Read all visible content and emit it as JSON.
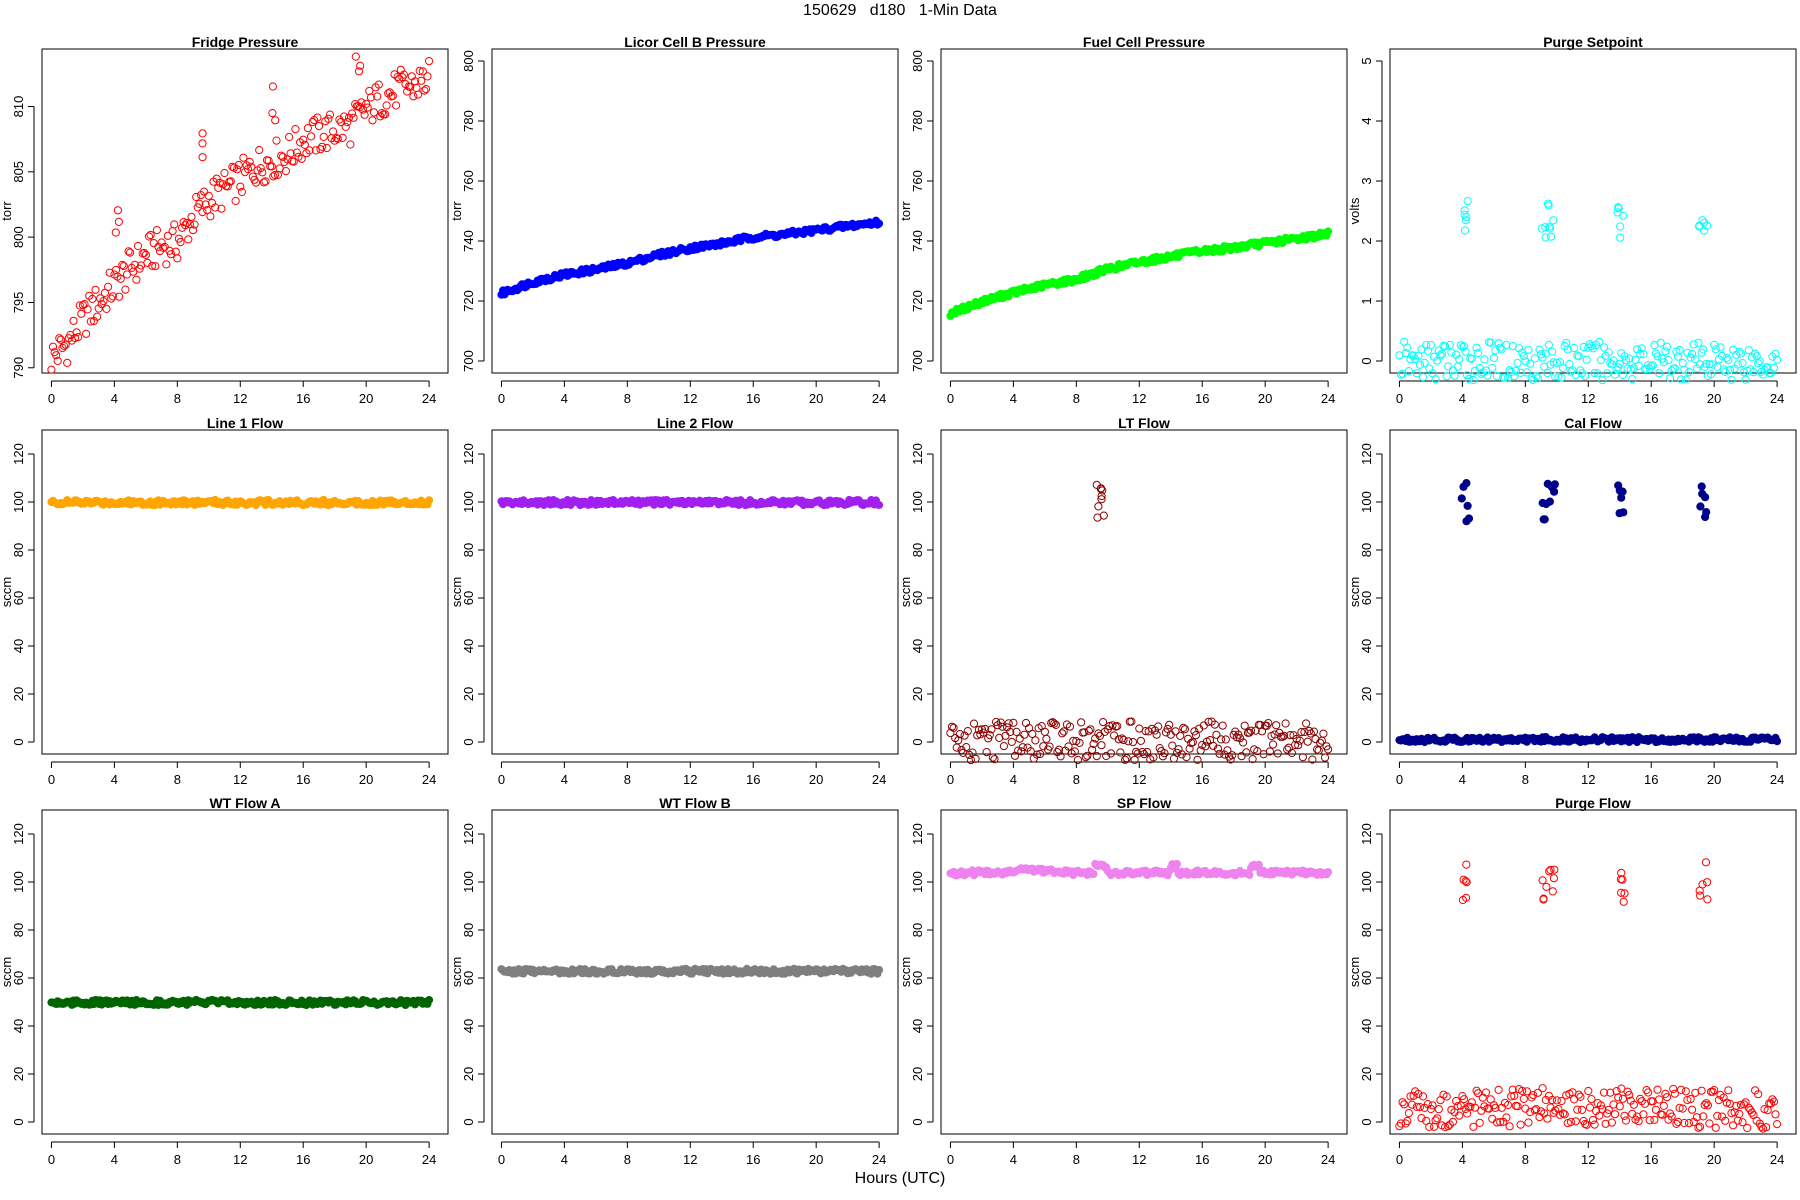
{
  "figure": {
    "title": "150629   d180   1-Min Data",
    "xlabel": "Hours (UTC)"
  },
  "chart_data": [
    {
      "type": "scatter",
      "title": "Fridge Pressure",
      "ylabel": "torr",
      "color": "#ff0000",
      "marker": "open-circle",
      "xlim": [
        -0.6,
        25.2
      ],
      "ylim": [
        789.6,
        814.4
      ],
      "xticks": [
        0,
        4,
        8,
        12,
        16,
        20,
        24
      ],
      "yticks": [
        790,
        795,
        800,
        805,
        810
      ],
      "series": [
        {
          "x": [
            0,
            1,
            2,
            3,
            4,
            5,
            6,
            7,
            8,
            9,
            10,
            11,
            12,
            13,
            14,
            15,
            16,
            17,
            18,
            19,
            20,
            21,
            22,
            23,
            24
          ],
          "y": [
            790.8,
            791.8,
            793.7,
            795.0,
            796.3,
            797.6,
            798.6,
            799.3,
            799.6,
            801.5,
            802.9,
            803.6,
            804.4,
            805.4,
            805.9,
            806.3,
            807.4,
            807.8,
            808.2,
            808.5,
            809.8,
            810.6,
            811.3,
            811.6,
            812.1
          ]
        },
        {
          "x": [
            4.2,
            9.6,
            14.1,
            19.5
          ],
          "y": [
            801.3,
            806.9,
            810.3,
            813.4
          ]
        }
      ]
    },
    {
      "type": "scatter",
      "title": "Licor Cell B Pressure",
      "ylabel": "torr",
      "color": "#0000ff",
      "marker": "filled-circle",
      "xlim": [
        -0.6,
        25.2
      ],
      "ylim": [
        696,
        804
      ],
      "xticks": [
        0,
        4,
        8,
        12,
        16,
        20,
        24
      ],
      "yticks": [
        700,
        720,
        740,
        760,
        780,
        800
      ],
      "series": [
        {
          "x": [
            0,
            2,
            4,
            6,
            8,
            10,
            12,
            14,
            16,
            18,
            20,
            22,
            24
          ],
          "y": [
            722.5,
            726.3,
            728.8,
            730.5,
            732.6,
            735.4,
            737.6,
            739.2,
            741.3,
            742.2,
            743.6,
            745.0,
            746.2
          ]
        }
      ]
    },
    {
      "type": "scatter",
      "title": "Fuel Cell Pressure",
      "ylabel": "torr",
      "color": "#00ff00",
      "marker": "filled-circle",
      "xlim": [
        -0.6,
        25.2
      ],
      "ylim": [
        696,
        804
      ],
      "xticks": [
        0,
        4,
        8,
        12,
        16,
        20,
        24
      ],
      "yticks": [
        700,
        720,
        740,
        760,
        780,
        800
      ],
      "series": [
        {
          "x": [
            0,
            2,
            4,
            6,
            8,
            10,
            12,
            14,
            16,
            18,
            20,
            22,
            24
          ],
          "y": [
            715.8,
            719.8,
            722.8,
            725.3,
            727.2,
            730.7,
            733.0,
            734.8,
            736.6,
            737.8,
            739.3,
            740.8,
            742.4
          ]
        }
      ]
    },
    {
      "type": "scatter",
      "title": "Purge Setpoint",
      "ylabel": "volts",
      "color": "#00ffff",
      "marker": "open-circle",
      "xlim": [
        -0.6,
        25.2
      ],
      "ylim": [
        -0.2,
        5.2
      ],
      "xticks": [
        0,
        4,
        8,
        12,
        16,
        20,
        24
      ],
      "yticks": [
        0,
        1,
        2,
        3,
        4,
        5
      ],
      "series": [
        {
          "x": [
            0,
            2,
            4,
            6,
            8,
            10,
            12,
            14,
            16,
            18,
            20,
            22,
            24
          ],
          "y": [
            0,
            0,
            0,
            0,
            0,
            0,
            0,
            0,
            0,
            0,
            0,
            0,
            0
          ]
        },
        {
          "x": [
            4.1,
            4.3,
            9.2,
            9.4,
            9.6,
            14.0,
            14.2,
            19.2,
            19.4
          ],
          "y": [
            2.45,
            2.38,
            2.38,
            2.45,
            2.37,
            2.45,
            2.36,
            2.38,
            2.44
          ]
        }
      ]
    },
    {
      "type": "scatter",
      "title": "Line 1 Flow",
      "ylabel": "sccm",
      "color": "#ffa500",
      "marker": "filled-circle",
      "xlim": [
        -0.6,
        25.2
      ],
      "ylim": [
        -5,
        130
      ],
      "xticks": [
        0,
        4,
        8,
        12,
        16,
        20,
        24
      ],
      "yticks": [
        0,
        20,
        40,
        60,
        80,
        100,
        120
      ],
      "series": [
        {
          "x": [
            0,
            24
          ],
          "y": [
            99.8,
            99.8
          ]
        }
      ]
    },
    {
      "type": "scatter",
      "title": "Line 2 Flow",
      "ylabel": "sccm",
      "color": "#a020f0",
      "marker": "filled-circle",
      "xlim": [
        -0.6,
        25.2
      ],
      "ylim": [
        -5,
        130
      ],
      "xticks": [
        0,
        4,
        8,
        12,
        16,
        20,
        24
      ],
      "yticks": [
        0,
        20,
        40,
        60,
        80,
        100,
        120
      ],
      "series": [
        {
          "x": [
            0,
            24
          ],
          "y": [
            99.8,
            99.8
          ]
        }
      ]
    },
    {
      "type": "scatter",
      "title": "LT Flow",
      "ylabel": "sccm",
      "color": "#8b0000",
      "marker": "open-circle",
      "xlim": [
        -0.6,
        25.2
      ],
      "ylim": [
        -5,
        130
      ],
      "xticks": [
        0,
        4,
        8,
        12,
        16,
        20,
        24
      ],
      "yticks": [
        0,
        20,
        40,
        60,
        80,
        100,
        120
      ],
      "series": [
        {
          "x": [
            0,
            24
          ],
          "y": [
            0.5,
            0.5
          ]
        },
        {
          "x": [
            9.3,
            9.45,
            9.6
          ],
          "y": [
            100.5,
            99.0,
            101.0
          ]
        }
      ]
    },
    {
      "type": "scatter",
      "title": "Cal Flow",
      "ylabel": "sccm",
      "color": "#00008b",
      "marker": "filled-circle",
      "xlim": [
        -0.6,
        25.2
      ],
      "ylim": [
        -5,
        130
      ],
      "xticks": [
        0,
        4,
        8,
        12,
        16,
        20,
        24
      ],
      "yticks": [
        0,
        20,
        40,
        60,
        80,
        100,
        120
      ],
      "series": [
        {
          "x": [
            0,
            24
          ],
          "y": [
            1.0,
            1.0
          ]
        },
        {
          "x": [
            4.1,
            4.3,
            9.2,
            9.4,
            9.8,
            14.0,
            14.2,
            19.2,
            19.5
          ],
          "y": [
            99.8,
            99.8,
            99.8,
            99.8,
            99.8,
            99.8,
            99.8,
            99.8,
            99.8
          ]
        }
      ]
    },
    {
      "type": "scatter",
      "title": "WT Flow A",
      "ylabel": "sccm",
      "color": "#006400",
      "marker": "filled-circle",
      "xlim": [
        -0.6,
        25.2
      ],
      "ylim": [
        -5,
        130
      ],
      "xticks": [
        0,
        4,
        8,
        12,
        16,
        20,
        24
      ],
      "yticks": [
        0,
        20,
        40,
        60,
        80,
        100,
        120
      ],
      "series": [
        {
          "x": [
            0,
            24
          ],
          "y": [
            49.8,
            49.8
          ]
        }
      ]
    },
    {
      "type": "scatter",
      "title": "WT Flow B",
      "ylabel": "sccm",
      "color": "#7f7f7f",
      "marker": "filled-circle",
      "xlim": [
        -0.6,
        25.2
      ],
      "ylim": [
        -5,
        130
      ],
      "xticks": [
        0,
        4,
        8,
        12,
        16,
        20,
        24
      ],
      "yticks": [
        0,
        20,
        40,
        60,
        80,
        100,
        120
      ],
      "series": [
        {
          "x": [
            0,
            24
          ],
          "y": [
            62.8,
            62.8
          ]
        }
      ]
    },
    {
      "type": "scatter",
      "title": "SP Flow",
      "ylabel": "sccm",
      "color": "#ee82ee",
      "marker": "filled-circle",
      "xlim": [
        -0.6,
        25.2
      ],
      "ylim": [
        -5,
        130
      ],
      "xticks": [
        0,
        4,
        8,
        12,
        16,
        20,
        24
      ],
      "yticks": [
        0,
        20,
        40,
        60,
        80,
        100,
        120
      ],
      "series": [
        {
          "x": [
            0,
            3.9,
            4.0,
            4.4,
            5.2,
            7.0,
            7.1,
            9.1,
            9.2,
            9.9,
            10.0,
            13.9,
            14.0,
            14.4,
            14.5,
            19.0,
            19.1,
            19.6,
            19.7,
            24
          ],
          "y": [
            103.8,
            103.8,
            104.6,
            105.4,
            104.8,
            104.6,
            103.8,
            103.8,
            106.5,
            106.5,
            103.8,
            103.8,
            106.5,
            106.5,
            103.8,
            103.8,
            106.5,
            106.5,
            103.8,
            103.8
          ]
        }
      ]
    },
    {
      "type": "scatter",
      "title": "Purge Flow",
      "ylabel": "sccm",
      "color": "#ff0000",
      "marker": "open-circle",
      "xlim": [
        -0.6,
        25.2
      ],
      "ylim": [
        -5,
        130
      ],
      "xticks": [
        0,
        4,
        8,
        12,
        16,
        20,
        24
      ],
      "yticks": [
        0,
        20,
        40,
        60,
        80,
        100,
        120
      ],
      "series": [
        {
          "x": [
            0,
            4,
            8,
            9.2,
            9.4,
            10,
            14,
            20,
            24
          ],
          "y": [
            5.2,
            5.5,
            5.8,
            10.2,
            7.5,
            6.0,
            6.2,
            5.5,
            5.0
          ]
        },
        {
          "x": [
            4.1,
            4.2,
            9.2,
            9.5,
            9.7,
            14.0,
            14.2,
            19.2,
            19.5
          ],
          "y": [
            100.2,
            99.8,
            100.0,
            99.8,
            100.1,
            100.0,
            99.8,
            100.0,
            100.2
          ]
        }
      ]
    }
  ]
}
